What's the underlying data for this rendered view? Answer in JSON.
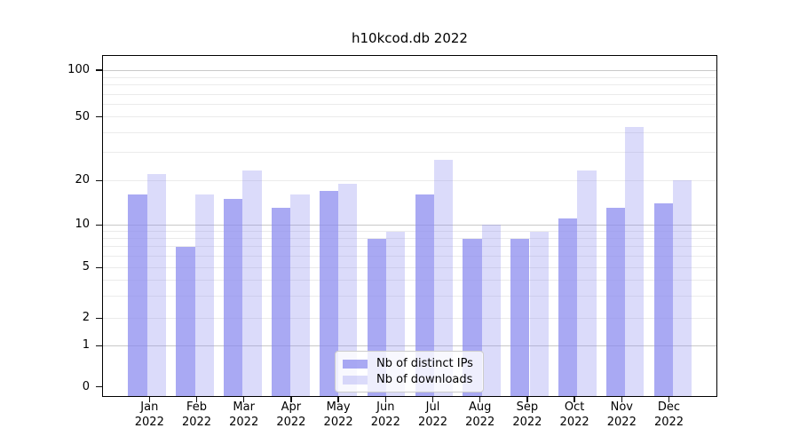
{
  "title": "h10kcod.db 2022",
  "chart_data": {
    "type": "bar",
    "title": "h10kcod.db 2022",
    "categories": [
      "Jan",
      "Feb",
      "Mar",
      "Apr",
      "May",
      "Jun",
      "Jul",
      "Aug",
      "Sep",
      "Oct",
      "Nov",
      "Dec"
    ],
    "x_year_label": "2022",
    "series": [
      {
        "name": "Nb of distinct IPs",
        "color": "#8888ee",
        "alpha": 0.72,
        "values": [
          16,
          7,
          15,
          13,
          17,
          8,
          16,
          8,
          8,
          11,
          13,
          14
        ]
      },
      {
        "name": "Nb of downloads",
        "color": "#8888ee",
        "alpha": 0.3,
        "values": [
          22,
          16,
          23,
          16,
          19,
          9,
          27,
          10,
          9,
          23,
          43,
          20
        ]
      }
    ],
    "y_axis": {
      "scale": "log-like with 0 baseline",
      "tick_labels": [
        "0",
        "1",
        "2",
        "5",
        "10",
        "20",
        "50",
        "100"
      ],
      "tick_values": [
        0,
        1,
        2,
        5,
        10,
        20,
        50,
        100
      ],
      "minor_gridline_values": [
        2,
        3,
        4,
        5,
        6,
        7,
        8,
        9,
        20,
        30,
        40,
        50,
        60,
        70,
        80,
        90
      ],
      "major_gridline_values": [
        1,
        10,
        100
      ],
      "ylim": [
        0,
        100
      ]
    },
    "legend": {
      "position": "lower center",
      "entries": [
        "Nb of distinct IPs",
        "Nb of downloads"
      ]
    },
    "grid": true
  }
}
